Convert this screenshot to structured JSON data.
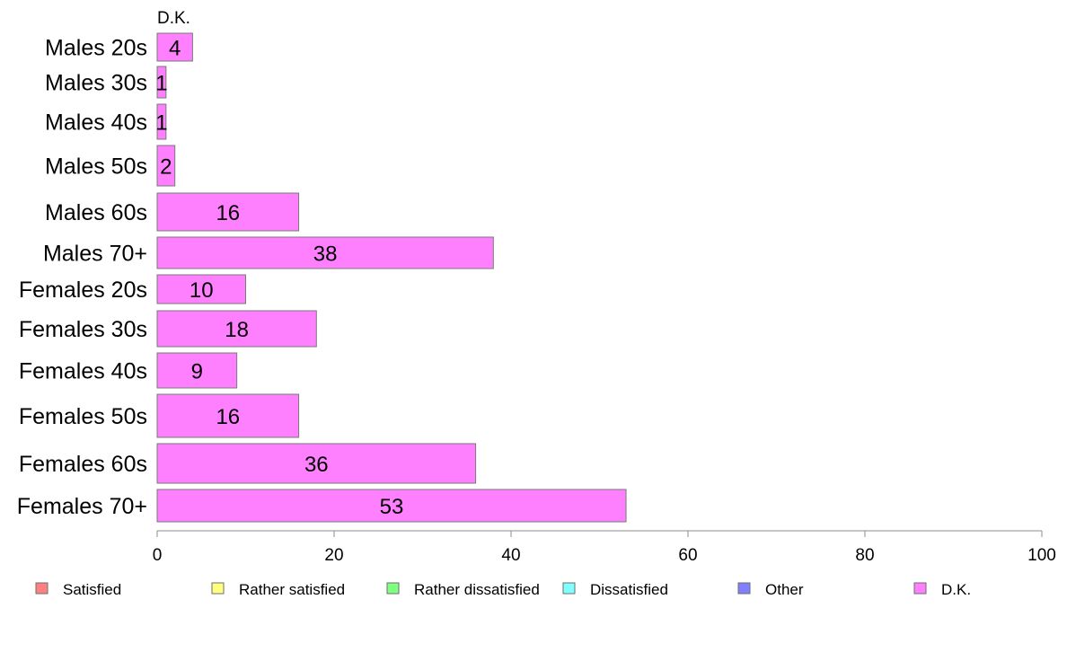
{
  "chart_data": {
    "type": "bar",
    "orientation": "horizontal",
    "stacked": true,
    "series_title": "D.K.",
    "categories": [
      "Males 20s",
      "Males 30s",
      "Males 40s",
      "Males 50s",
      "Males 60s",
      "Males 70+",
      "Females 20s",
      "Females 30s",
      "Females 40s",
      "Females 50s",
      "Females 60s",
      "Females 70+"
    ],
    "series": [
      {
        "name": "D.K.",
        "values": [
          4,
          1,
          1,
          2,
          16,
          38,
          10,
          18,
          9,
          16,
          36,
          53
        ],
        "labels": [
          "4",
          "1",
          "1",
          "2",
          "16",
          "38",
          "10",
          "18",
          "9",
          "16",
          "36",
          "53"
        ]
      }
    ],
    "xlim": [
      0,
      100
    ],
    "xticks": [
      0,
      20,
      40,
      60,
      80,
      100
    ],
    "grid": false,
    "legend_position": "bottom",
    "legend": [
      {
        "label": "Satisfied",
        "color": "#ff8080"
      },
      {
        "label": "Rather satisfied",
        "color": "#ffff80"
      },
      {
        "label": "Rather dissatisfied",
        "color": "#80ff80"
      },
      {
        "label": "Dissatisfied",
        "color": "#80ffff"
      },
      {
        "label": "Other",
        "color": "#8080ff"
      },
      {
        "label": "D.K.",
        "color": "#ff80ff"
      }
    ],
    "bar_color": "#ff80ff"
  }
}
